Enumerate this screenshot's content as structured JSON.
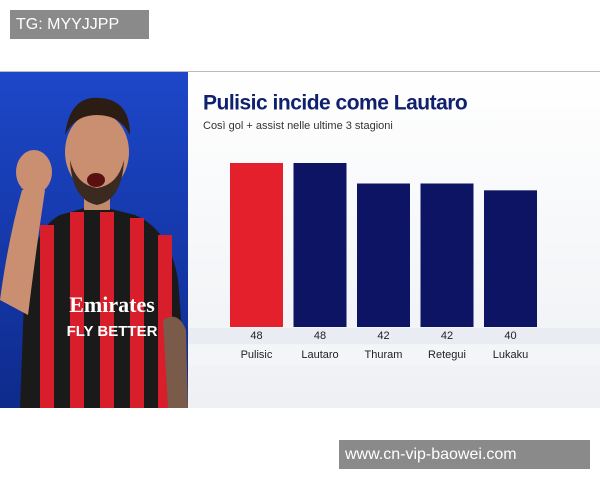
{
  "watermarks": {
    "top": "TG: MYYJJPP",
    "bottom": "www.cn-vip-baowei.com"
  },
  "chart_data": {
    "type": "bar",
    "title": "Pulisic incide come Lautaro",
    "subtitle": "Così gol + assist nelle ultime 3 stagioni",
    "categories": [
      "Pulisic",
      "Lautaro",
      "Thuram",
      "Retegui",
      "Lukaku"
    ],
    "values": [
      48,
      48,
      42,
      42,
      40
    ],
    "colors": [
      "#e3202b",
      "#0c1463",
      "#0c1463",
      "#0c1463",
      "#0c1463"
    ]
  }
}
